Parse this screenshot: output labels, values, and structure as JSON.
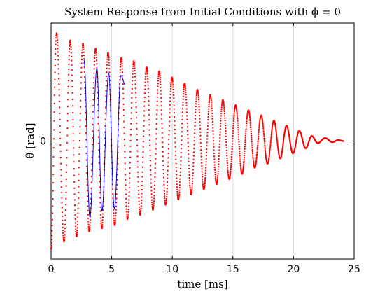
{
  "chart_data": {
    "type": "scatter",
    "title": "System Response from Initial Conditions with ϕ = 0",
    "xlabel": "time [ms]",
    "ylabel": "θ [rad]",
    "xlim": [
      0,
      25
    ],
    "ylim": [
      -1.15,
      1.15
    ],
    "x_ticks": [
      0,
      5,
      10,
      15,
      20,
      25
    ],
    "y_ticks": [
      0
    ],
    "y_tick_labels": [
      "0"
    ],
    "grid": "vertical",
    "legend": "none",
    "series": [
      {
        "color": "#ff0000",
        "style": "dense dots",
        "x": [
          0.0,
          0.45,
          1.07,
          1.58,
          2.1,
          2.63,
          3.15,
          3.67,
          4.18,
          4.7,
          5.25,
          5.8,
          6.3,
          6.83,
          7.35,
          7.88,
          8.4,
          8.92,
          9.45,
          9.97,
          10.5,
          11.02,
          11.55,
          12.07,
          12.6,
          13.13,
          13.65,
          14.17,
          14.7,
          15.22,
          15.75,
          16.28,
          16.8,
          17.33,
          17.85,
          18.38,
          18.9,
          19.42,
          19.95,
          20.47,
          21.0,
          21.5,
          22.0,
          22.6,
          23.2,
          23.7,
          24.1
        ],
        "y": [
          -1.05,
          1.05,
          -0.98,
          0.98,
          -0.93,
          0.95,
          -0.88,
          0.9,
          -0.85,
          0.86,
          -0.82,
          0.81,
          -0.76,
          0.78,
          -0.72,
          0.72,
          -0.67,
          0.68,
          -0.62,
          0.62,
          -0.57,
          0.56,
          -0.52,
          0.5,
          -0.47,
          0.45,
          -0.42,
          0.4,
          -0.37,
          0.35,
          -0.32,
          0.3,
          -0.26,
          0.25,
          -0.22,
          0.2,
          -0.17,
          0.15,
          -0.12,
          0.1,
          -0.07,
          0.05,
          -0.02,
          0.03,
          -0.01,
          0.01,
          0.0
        ]
      },
      {
        "color": "#0000ff",
        "style": "line",
        "x": [
          2.72,
          3.2,
          3.78,
          4.2,
          4.75,
          5.22,
          5.77,
          6.1
        ],
        "y": [
          0.79,
          -0.74,
          0.71,
          -0.68,
          0.66,
          -0.66,
          0.64,
          0.55
        ]
      }
    ]
  }
}
